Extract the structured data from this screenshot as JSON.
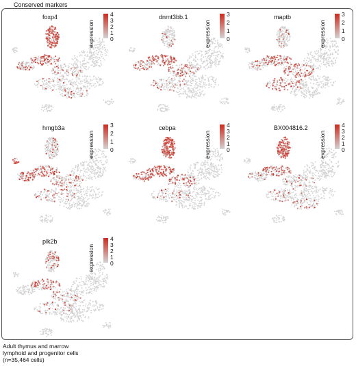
{
  "header": "Conserved markers",
  "footer": [
    "Adult thymus and marrow",
    "lymphoid and progenitor cells",
    "(n=35,464 cells)"
  ],
  "colors": {
    "low": "#d3d3d3",
    "high": "#cc2a1e",
    "frame": "#555555"
  },
  "chart_data": [
    {
      "type": "scatter",
      "gene": "foxp4",
      "legend_title": "expression",
      "ticks": [
        "4",
        "3",
        "2",
        "1",
        "0"
      ],
      "max": 4,
      "hot": "myeloid-upper"
    },
    {
      "type": "scatter",
      "gene": "dnmt3bb.1",
      "legend_title": "expression",
      "ticks": [
        "3",
        "2",
        "1",
        "0"
      ],
      "max": 3,
      "hot": "progenitor"
    },
    {
      "type": "scatter",
      "gene": "maptb",
      "legend_title": "expression",
      "ticks": [
        "3",
        "2",
        "1",
        "0"
      ],
      "max": 3,
      "hot": "progenitor-lower"
    },
    {
      "type": "scatter",
      "gene": "hmgb3a",
      "legend_title": "expression",
      "ticks": [
        "3",
        "2",
        "1",
        "0"
      ],
      "max": 3,
      "hot": "left-progenitor"
    },
    {
      "type": "scatter",
      "gene": "cebpa",
      "legend_title": "expression",
      "ticks": [
        "4",
        "3",
        "2",
        "1",
        "0"
      ],
      "max": 4,
      "hot": "myeloid-strong"
    },
    {
      "type": "scatter",
      "gene": "BX004816.2",
      "legend_title": "expression",
      "ticks": [
        "4",
        "3",
        "2",
        "1",
        "0"
      ],
      "max": 4,
      "hot": "myeloid-upper"
    },
    {
      "type": "scatter",
      "gene": "plk2b",
      "legend_title": "expression",
      "ticks": [
        "4",
        "3",
        "2",
        "1",
        "0"
      ],
      "max": 4,
      "hot": "faint"
    }
  ]
}
